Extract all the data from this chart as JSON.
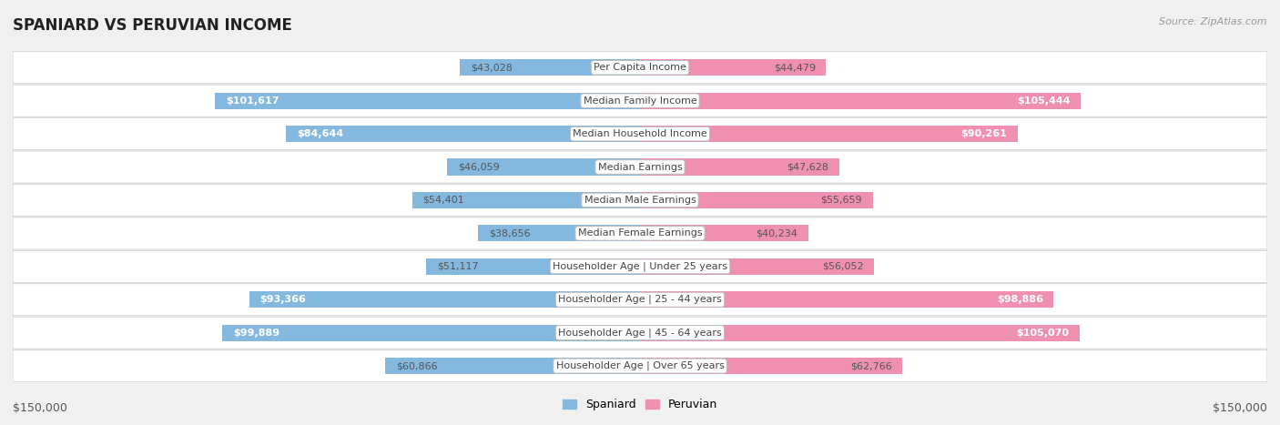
{
  "title": "SPANIARD VS PERUVIAN INCOME",
  "source": "Source: ZipAtlas.com",
  "categories": [
    "Per Capita Income",
    "Median Family Income",
    "Median Household Income",
    "Median Earnings",
    "Median Male Earnings",
    "Median Female Earnings",
    "Householder Age | Under 25 years",
    "Householder Age | 25 - 44 years",
    "Householder Age | 45 - 64 years",
    "Householder Age | Over 65 years"
  ],
  "spaniard_values": [
    43028,
    101617,
    84644,
    46059,
    54401,
    38656,
    51117,
    93366,
    99889,
    60866
  ],
  "peruvian_values": [
    44479,
    105444,
    90261,
    47628,
    55659,
    40234,
    56052,
    98886,
    105070,
    62766
  ],
  "spaniard_labels": [
    "$43,028",
    "$101,617",
    "$84,644",
    "$46,059",
    "$54,401",
    "$38,656",
    "$51,117",
    "$93,366",
    "$99,889",
    "$60,866"
  ],
  "peruvian_labels": [
    "$44,479",
    "$105,444",
    "$90,261",
    "$47,628",
    "$55,659",
    "$40,234",
    "$56,052",
    "$98,886",
    "$105,070",
    "$62,766"
  ],
  "spaniard_color": "#85b8de",
  "peruvian_color": "#f090b0",
  "max_value": 150000,
  "bar_height": 0.5,
  "background_color": "#f0f0f0",
  "row_bg_color": "#ffffff",
  "legend_spaniard": "Spaniard",
  "legend_peruvian": "Peruvian",
  "xlabel_left": "$150,000",
  "xlabel_right": "$150,000",
  "inside_label_threshold": 70000,
  "label_fontsize": 8.0,
  "cat_fontsize": 8.0,
  "title_fontsize": 12,
  "source_fontsize": 8
}
